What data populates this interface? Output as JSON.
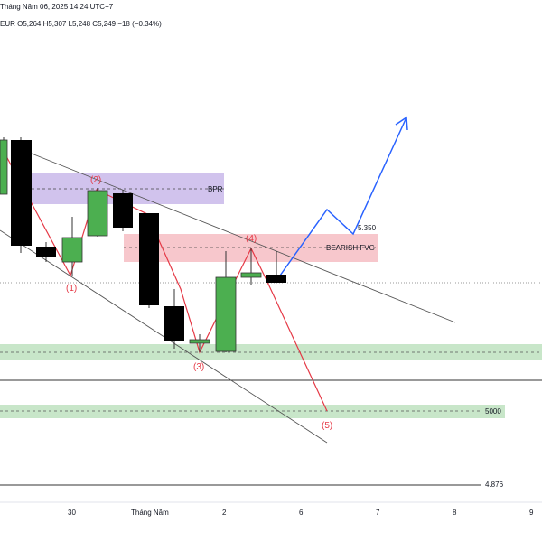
{
  "header": {
    "date_line": "Tháng Năm 06, 2025 14:24 UTC+7",
    "ohlc_line": "EUR  O5,264  H5,307  L5,248  C5,249  −18 (−0.34%)"
  },
  "colors": {
    "bull": "#4caf50",
    "bear": "#000000",
    "bpr_zone": "#c9b8ea",
    "fvg_zone": "#f6c1c6",
    "support_zone": "#c8e6c9",
    "wave_red": "#e53946",
    "projection_blue": "#2962ff",
    "channel": "#555555"
  },
  "zones": {
    "bpr": "BPR",
    "bearish_fvg": "BEARISH FVG"
  },
  "price_labels": {
    "level_5350": "5.350",
    "level_5000": "5000",
    "level_4876": "4.876"
  },
  "wave_labels": [
    "(1)",
    "(2)",
    "(3)",
    "(4)",
    "(5)"
  ],
  "x_axis": {
    "ticks": [
      "30",
      "Tháng Năm",
      "2",
      "6",
      "7",
      "8",
      "9"
    ]
  }
}
